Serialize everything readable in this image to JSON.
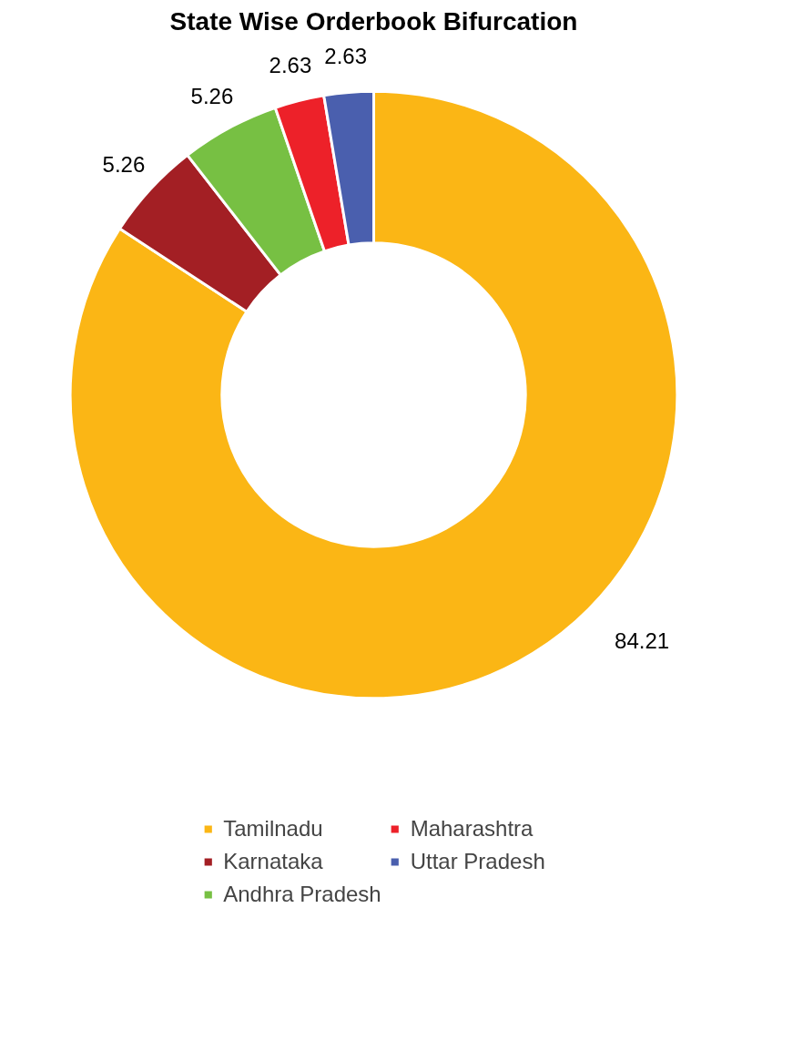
{
  "chart_data": {
    "type": "donut",
    "title": "State Wise Orderbook Bifurcation",
    "categories": [
      "Tamilnadu",
      "Karnataka",
      "Andhra Pradesh",
      "Maharashtra",
      "Uttar Pradesh"
    ],
    "values": [
      84.21,
      5.26,
      5.26,
      2.63,
      2.63
    ],
    "colors": [
      "#fbb615",
      "#a31f24",
      "#77c043",
      "#ed2129",
      "#4a5fae"
    ],
    "data_labels": true,
    "legend": "bottom"
  }
}
